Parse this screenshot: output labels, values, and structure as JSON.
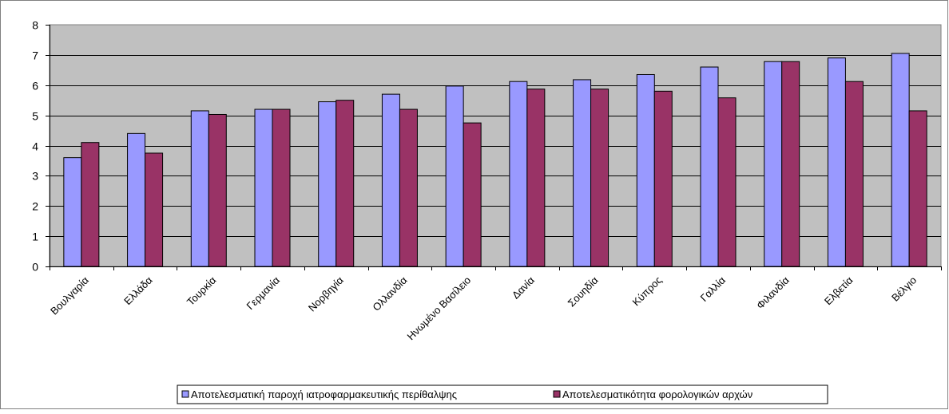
{
  "chart_data": {
    "type": "bar",
    "title": "",
    "xlabel": "",
    "ylabel": "",
    "ylim": [
      0,
      8
    ],
    "yticks": [
      0,
      1,
      2,
      3,
      4,
      5,
      6,
      7,
      8
    ],
    "grid": "horizontal",
    "legend_position": "bottom",
    "categories": [
      "Βουλγαρία",
      "Ελλάδα",
      "Τουρκία",
      "Γερμανία",
      "Νορβηγία",
      "Ολλανδία",
      "Ηνωμένο Βασίλειο",
      "Δανία",
      "Σουηδία",
      "Κύπρος",
      "Γαλλία",
      "Φιλανδία",
      "Ελβετία",
      "Βέλγιο"
    ],
    "series": [
      {
        "name": "Αποτελεσματική παροχή ιατροφαρμακευτικής περίθαλψης",
        "color": "#9999ff",
        "values": [
          3.6,
          4.4,
          5.15,
          5.2,
          5.45,
          5.7,
          5.97,
          6.12,
          6.18,
          6.35,
          6.6,
          6.78,
          6.9,
          7.05
        ]
      },
      {
        "name": "Αποτελεσματικότητα φορολογικών αρχών",
        "color": "#993366",
        "values": [
          4.1,
          3.75,
          5.03,
          5.2,
          5.5,
          5.2,
          4.75,
          5.87,
          5.87,
          5.8,
          5.58,
          6.78,
          6.12,
          5.15
        ]
      }
    ]
  }
}
